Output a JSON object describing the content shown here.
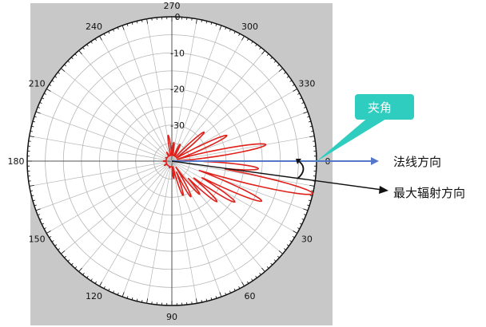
{
  "angle_labels": [
    {
      "deg": 0,
      "text": "0"
    },
    {
      "deg": 30,
      "text": "30"
    },
    {
      "deg": 60,
      "text": "60"
    },
    {
      "deg": 90,
      "text": "90"
    },
    {
      "deg": 120,
      "text": "120"
    },
    {
      "deg": 150,
      "text": "150"
    },
    {
      "deg": 180,
      "text": "180"
    },
    {
      "deg": 210,
      "text": "210"
    },
    {
      "deg": 240,
      "text": "240"
    },
    {
      "deg": 270,
      "text": "270"
    },
    {
      "deg": 300,
      "text": "300"
    },
    {
      "deg": 330,
      "text": "330"
    }
  ],
  "db_labels": [
    "0",
    "-10",
    "-20",
    "-30"
  ],
  "callout": {
    "text": "夹角",
    "color": "#2ecdc0"
  },
  "normal_direction_label": "法线方向",
  "max_radiation_label": "最大辐射方向",
  "colors": {
    "pattern": "#e0201a",
    "normal_arrow": "#5577c8",
    "panel": "#c8c8c8",
    "grid": "#b5b5b5"
  },
  "pattern_lobes": [
    {
      "angle": 13,
      "level": 1.0
    },
    {
      "angle": 24,
      "level": 0.68
    },
    {
      "angle": 33,
      "level": 0.52
    },
    {
      "angle": 42,
      "level": 0.42
    },
    {
      "angle": 50,
      "level": 0.3
    },
    {
      "angle": 62,
      "level": 0.28
    },
    {
      "angle": 72,
      "level": 0.25
    },
    {
      "angle": 84,
      "level": 0.12
    },
    {
      "angle": 110,
      "level": 0.05
    },
    {
      "angle": 150,
      "level": 0.06
    },
    {
      "angle": 180,
      "level": 0.06
    },
    {
      "angle": 210,
      "level": 0.05
    },
    {
      "angle": 240,
      "level": 0.07
    },
    {
      "angle": 262,
      "level": 0.18
    },
    {
      "angle": 276,
      "level": 0.13
    },
    {
      "angle": 296,
      "level": 0.13
    },
    {
      "angle": 318,
      "level": 0.3
    },
    {
      "angle": 335,
      "level": 0.42
    },
    {
      "angle": 350,
      "level": 0.66
    },
    {
      "angle": 5,
      "level": 0.6
    }
  ]
}
